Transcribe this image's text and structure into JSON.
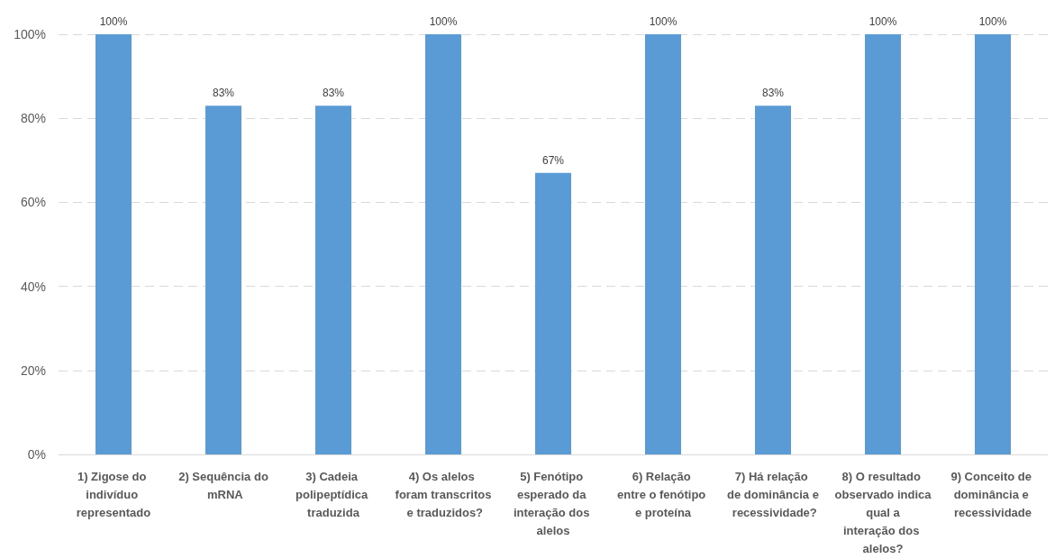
{
  "chart_data": {
    "type": "bar",
    "categories": [
      "1) Zigose do indivíduo representado",
      "2) Sequência do mRNA",
      "3) Cadeia polipeptídica traduzida",
      "4) Os alelos foram transcritos e traduzidos?",
      "5) Fenótipo esperado da interação dos alelos",
      "6) Relação entre o fenótipo e proteína",
      "7) Há relação de dominância e recessividade?",
      "8) O resultado observado indica qual a interação dos alelos?",
      "9) Conceito de dominância e recessividade"
    ],
    "values": [
      100,
      83,
      83,
      100,
      67,
      100,
      83,
      100,
      100
    ],
    "value_labels": [
      "100%",
      "83%",
      "83%",
      "100%",
      "67%",
      "100%",
      "83%",
      "100%",
      "100%"
    ],
    "color": "#5b9bd5",
    "ylim": [
      0,
      100
    ],
    "yticks": [
      {
        "value": 0,
        "label": "0%"
      },
      {
        "value": 20,
        "label": "20%"
      },
      {
        "value": 40,
        "label": "40%"
      },
      {
        "value": 60,
        "label": "60%"
      },
      {
        "value": 80,
        "label": "80%"
      },
      {
        "value": 100,
        "label": "100%"
      }
    ],
    "grid": "y"
  }
}
